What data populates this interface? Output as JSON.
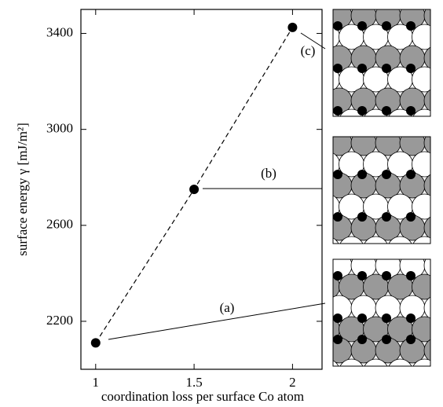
{
  "chart_data": {
    "type": "line",
    "x": [
      1,
      1.5,
      2
    ],
    "series": [
      {
        "values": [
          2110,
          2750,
          3425
        ],
        "color": "#000000"
      }
    ],
    "xlabel": "coordination loss per surface Co atom",
    "ylabel": "surface energy γ [mJ/m²]",
    "xlim": [
      0.925,
      2.15
    ],
    "ylim": [
      2000,
      3500
    ],
    "xticks": [
      1,
      1.5,
      2
    ],
    "yticks": [
      2200,
      2600,
      3000,
      3400
    ],
    "annotations": [
      "(a)",
      "(b)",
      "(c)"
    ]
  }
}
